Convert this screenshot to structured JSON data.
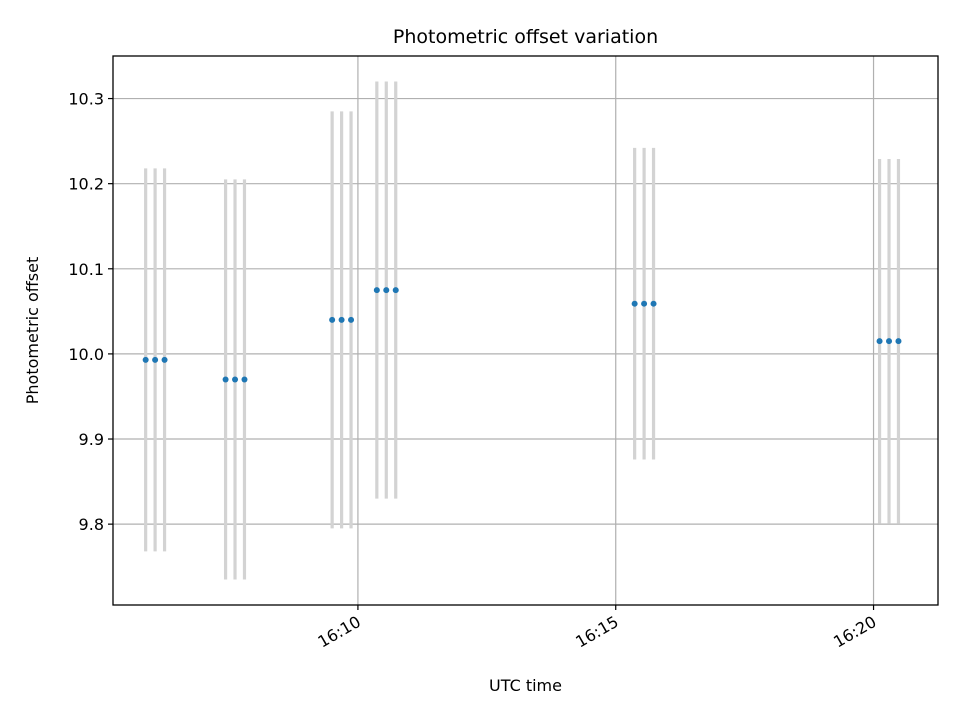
{
  "chart_data": {
    "type": "scatter",
    "title": "Photometric offset variation",
    "xlabel": "UTC time",
    "ylabel": "Photometric offset",
    "grid": true,
    "ylim": [
      9.705,
      10.35
    ],
    "xlim": [
      "16:05:15",
      "16:21:15"
    ],
    "xticks": [
      "16:10",
      "16:15",
      "16:20"
    ],
    "yticks": [
      "9.8",
      "9.9",
      "10.0",
      "10.1",
      "10.2",
      "10.3"
    ],
    "colors": {
      "point": "#1f77b4",
      "errorbar": "#d3d3d3"
    },
    "points": [
      {
        "x": "16:05:53",
        "y": 9.993,
        "yerr": 0.225
      },
      {
        "x": "16:06:04",
        "y": 9.993,
        "yerr": 0.225
      },
      {
        "x": "16:06:15",
        "y": 9.993,
        "yerr": 0.225
      },
      {
        "x": "16:07:26",
        "y": 9.97,
        "yerr": 0.235
      },
      {
        "x": "16:07:37",
        "y": 9.97,
        "yerr": 0.235
      },
      {
        "x": "16:07:48",
        "y": 9.97,
        "yerr": 0.235
      },
      {
        "x": "16:09:30",
        "y": 10.04,
        "yerr": 0.245
      },
      {
        "x": "16:09:41",
        "y": 10.04,
        "yerr": 0.245
      },
      {
        "x": "16:09:52",
        "y": 10.04,
        "yerr": 0.245
      },
      {
        "x": "16:10:22",
        "y": 10.075,
        "yerr": 0.245
      },
      {
        "x": "16:10:33",
        "y": 10.075,
        "yerr": 0.245
      },
      {
        "x": "16:10:44",
        "y": 10.075,
        "yerr": 0.245
      },
      {
        "x": "16:15:22",
        "y": 10.059,
        "yerr": 0.183
      },
      {
        "x": "16:15:33",
        "y": 10.059,
        "yerr": 0.183
      },
      {
        "x": "16:15:44",
        "y": 10.059,
        "yerr": 0.183
      },
      {
        "x": "16:20:07",
        "y": 10.015,
        "yerr": 0.214
      },
      {
        "x": "16:20:18",
        "y": 10.015,
        "yerr": 0.214
      },
      {
        "x": "16:20:29",
        "y": 10.015,
        "yerr": 0.214
      }
    ]
  }
}
